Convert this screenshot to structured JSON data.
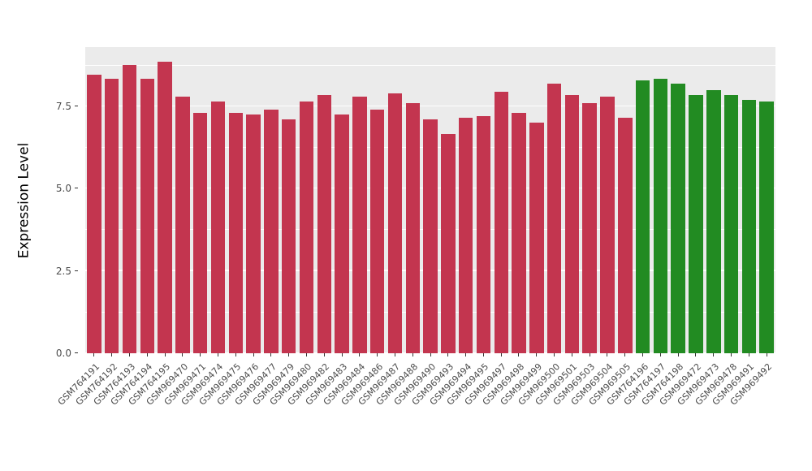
{
  "chart_data": {
    "type": "bar",
    "title": "",
    "xlabel": "",
    "ylabel": "Expression Level",
    "ylim": [
      0,
      9.3
    ],
    "y_ticks": [
      0.0,
      2.5,
      5.0,
      7.5
    ],
    "y_minor_ticks": [
      1.25,
      3.75,
      6.25,
      8.75
    ],
    "grid": true,
    "legend_position": "none",
    "panel_background": "#EBEBEB",
    "gridline_color": "#FFFFFF",
    "palette": {
      "red": "#C3354F",
      "green": "#228B22"
    },
    "categories": [
      "GSM764191",
      "GSM764192",
      "GSM764193",
      "GSM764194",
      "GSM764195",
      "GSM969470",
      "GSM969471",
      "GSM969474",
      "GSM969475",
      "GSM969476",
      "GSM969477",
      "GSM969479",
      "GSM969480",
      "GSM969482",
      "GSM969483",
      "GSM969484",
      "GSM969486",
      "GSM969487",
      "GSM969488",
      "GSM969490",
      "GSM969493",
      "GSM969494",
      "GSM969495",
      "GSM969497",
      "GSM969498",
      "GSM969499",
      "GSM969500",
      "GSM969501",
      "GSM969503",
      "GSM969504",
      "GSM969505",
      "GSM764196",
      "GSM764197",
      "GSM764198",
      "GSM969472",
      "GSM969473",
      "GSM969478",
      "GSM969491",
      "GSM969492"
    ],
    "values": [
      8.45,
      8.35,
      8.75,
      8.35,
      8.85,
      7.8,
      7.3,
      7.65,
      7.3,
      7.25,
      7.4,
      7.1,
      7.65,
      7.85,
      7.25,
      7.8,
      7.4,
      7.9,
      7.6,
      7.1,
      6.65,
      7.15,
      7.2,
      7.95,
      7.3,
      7.0,
      8.2,
      7.85,
      7.6,
      7.8,
      7.15,
      8.3,
      8.35,
      8.2,
      7.85,
      8.0,
      7.85,
      7.7,
      7.65
    ],
    "groups": [
      "red",
      "red",
      "red",
      "red",
      "red",
      "red",
      "red",
      "red",
      "red",
      "red",
      "red",
      "red",
      "red",
      "red",
      "red",
      "red",
      "red",
      "red",
      "red",
      "red",
      "red",
      "red",
      "red",
      "red",
      "red",
      "red",
      "red",
      "red",
      "red",
      "red",
      "red",
      "green",
      "green",
      "green",
      "green",
      "green",
      "green",
      "green",
      "green"
    ]
  }
}
